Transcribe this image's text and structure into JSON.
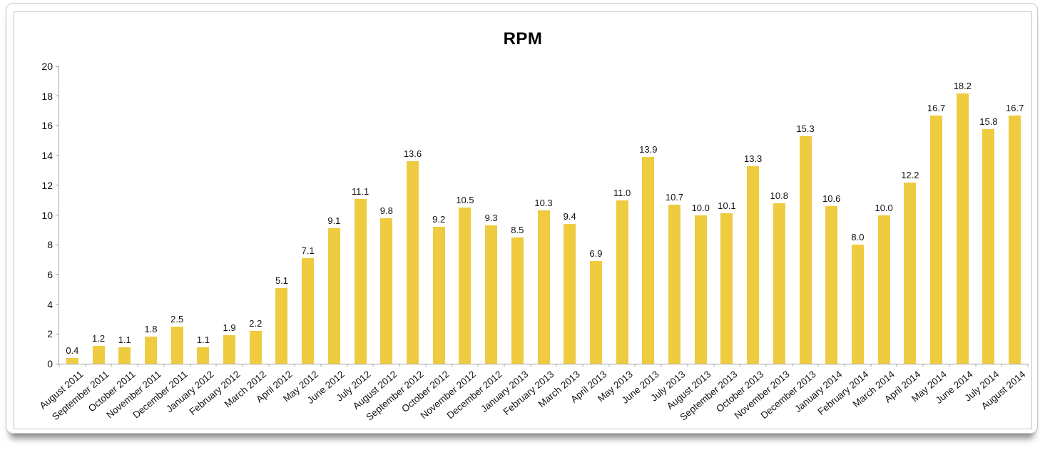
{
  "chart_data": {
    "type": "bar",
    "title": "RPM",
    "categories": [
      "August 2011",
      "September 2011",
      "October 2011",
      "November 2011",
      "December 2011",
      "January 2012",
      "February 2012",
      "March 2012",
      "April 2012",
      "May 2012",
      "June 2012",
      "July 2012",
      "August 2012",
      "September 2012",
      "October 2012",
      "November 2012",
      "December 2012",
      "January 2013",
      "February 2013",
      "March 2013",
      "April 2013",
      "May 2013",
      "June 2013",
      "July 2013",
      "August 2013",
      "September 2013",
      "October 2013",
      "November 2013",
      "December 2013",
      "January 2014",
      "February 2014",
      "March 2014",
      "April 2014",
      "May 2014",
      "June 2014",
      "July 2014",
      "August 2014"
    ],
    "values": [
      0.4,
      1.2,
      1.1,
      1.8,
      2.5,
      1.1,
      1.9,
      2.2,
      5.1,
      7.1,
      9.1,
      11.1,
      9.8,
      13.6,
      9.2,
      10.5,
      9.3,
      8.5,
      10.3,
      9.4,
      6.9,
      11.0,
      13.9,
      10.7,
      10.0,
      10.1,
      13.3,
      10.8,
      15.3,
      10.6,
      8.0,
      10.0,
      12.2,
      16.7,
      18.2,
      15.8,
      16.7
    ],
    "xlabel": "",
    "ylabel": "",
    "ylim": [
      0,
      20
    ],
    "y_ticks": [
      0,
      2,
      4,
      6,
      8,
      10,
      12,
      14,
      16,
      18,
      20
    ],
    "grid": "off",
    "legend": "none",
    "bar_color": "#efcb40",
    "axis_color": "#a6a6a6",
    "text_color": "#111111"
  }
}
